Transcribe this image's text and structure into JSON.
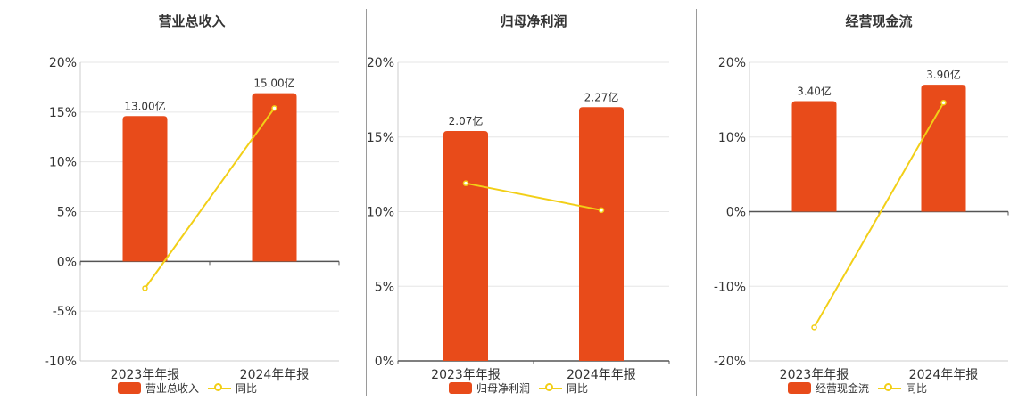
{
  "chart_data": [
    {
      "type": "bar",
      "title": "营业总收入",
      "categories": [
        "2023年年报",
        "2024年年报"
      ],
      "series": [
        {
          "name": "营业总收入",
          "type": "bar",
          "values": [
            14.6,
            16.9
          ],
          "labels": [
            "13.00亿",
            "15.00亿"
          ]
        },
        {
          "name": "同比",
          "type": "line",
          "values": [
            -2.7,
            15.4
          ]
        }
      ],
      "ylim": [
        -10,
        20
      ],
      "yticks": [
        "20%",
        "15%",
        "10%",
        "5%",
        "0%",
        "-5%",
        "-10%"
      ],
      "grid": true,
      "legend": "bottom"
    },
    {
      "type": "bar",
      "title": "归母净利润",
      "categories": [
        "2023年年报",
        "2024年年报"
      ],
      "series": [
        {
          "name": "归母净利润",
          "type": "bar",
          "values": [
            15.4,
            17.0
          ],
          "labels": [
            "2.07亿",
            "2.27亿"
          ]
        },
        {
          "name": "同比",
          "type": "line",
          "values": [
            11.9,
            10.1
          ]
        }
      ],
      "ylim": [
        0,
        20
      ],
      "yticks": [
        "20%",
        "15%",
        "10%",
        "5%",
        "0%"
      ],
      "grid": true,
      "legend": "bottom"
    },
    {
      "type": "bar",
      "title": "经营现金流",
      "categories": [
        "2023年年报",
        "2024年年报"
      ],
      "series": [
        {
          "name": "经营现金流",
          "type": "bar",
          "values": [
            14.8,
            17.0
          ],
          "labels": [
            "3.40亿",
            "3.90亿"
          ]
        },
        {
          "name": "同比",
          "type": "line",
          "values": [
            -15.5,
            14.6
          ]
        }
      ],
      "ylim": [
        -20,
        20
      ],
      "yticks": [
        "20%",
        "10%",
        "0%",
        "-10%",
        "-20%"
      ],
      "grid": true,
      "legend": "bottom"
    }
  ],
  "colors": {
    "bar": "#e84b1a",
    "line": "#f2cf17",
    "grid": "#e6e6e6",
    "axis": "#555555"
  }
}
